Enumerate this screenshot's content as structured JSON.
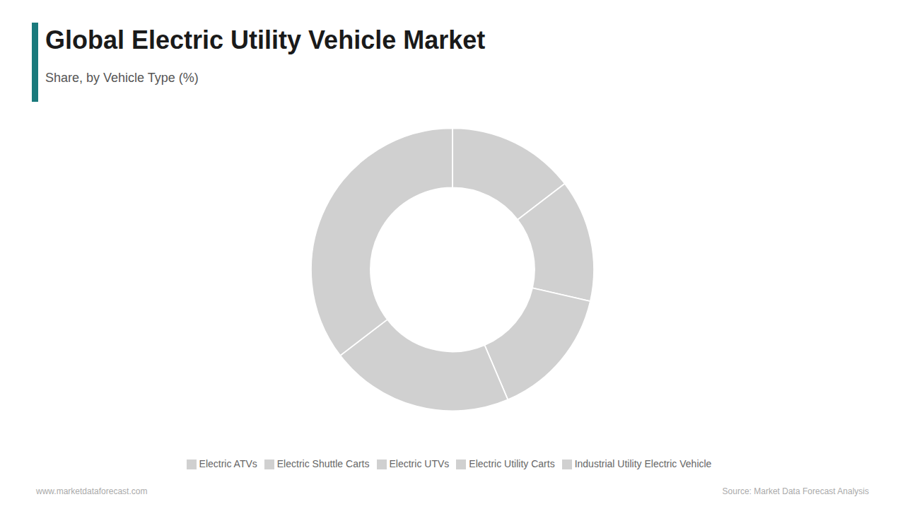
{
  "chart_data": {
    "type": "pie",
    "title": "Global Electric Utility Vehicle Market",
    "subtitle": "Share, by Vehicle Type (%)",
    "categories": [
      "Electric ATVs",
      "Electric UTVs",
      "Electric Utility Carts",
      "Electric Shuttle Carts",
      "Industrial Utility Electric Vehicle"
    ],
    "values": [
      14.6,
      14.0,
      15.0,
      21.0,
      35.4
    ],
    "color": "#d0d0d0",
    "legend": "bottom",
    "annotations": [
      "www.marketdataforecast.com",
      "Source: Market Data Forecast Analysis"
    ]
  }
}
